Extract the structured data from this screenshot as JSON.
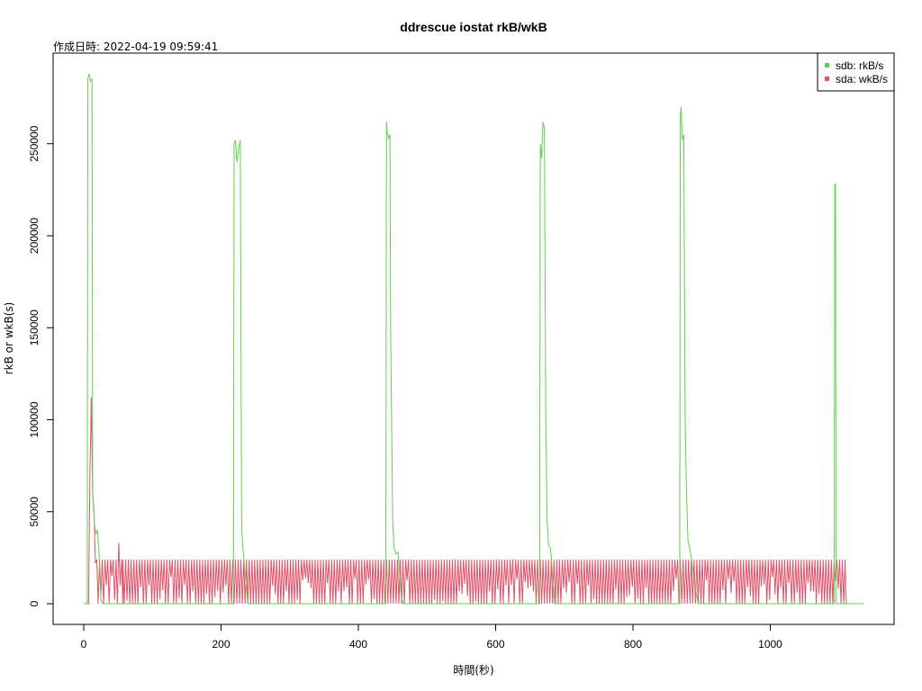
{
  "chart_data": {
    "type": "line",
    "title": "ddrescue iostat rkB/wkB",
    "subtitle": "作成日時: 2022-04-19 09:59:41",
    "xlabel": "時間(秒)",
    "ylabel": "rkB or wkB(s)",
    "xlim": [
      0,
      1135
    ],
    "ylim": [
      0,
      290000
    ],
    "x_ticks": [
      0,
      200,
      400,
      600,
      800,
      1000
    ],
    "y_ticks": [
      0,
      50000,
      100000,
      150000,
      200000,
      250000
    ],
    "grid": false,
    "legend_position": "top-right",
    "series": [
      {
        "name": "sdb: rkB/s",
        "color": "#61d04f",
        "points": [
          [
            0,
            0
          ],
          [
            5,
            0
          ],
          [
            6,
            285000
          ],
          [
            8,
            288000
          ],
          [
            10,
            284000
          ],
          [
            12,
            285000
          ],
          [
            13,
            60000
          ],
          [
            16,
            42000
          ],
          [
            18,
            38000
          ],
          [
            20,
            40000
          ],
          [
            22,
            30000
          ],
          [
            25,
            2000
          ],
          [
            28,
            0
          ],
          [
            218,
            0
          ],
          [
            219,
            250000
          ],
          [
            221,
            252000
          ],
          [
            223,
            240000
          ],
          [
            226,
            248000
          ],
          [
            228,
            252000
          ],
          [
            230,
            40000
          ],
          [
            233,
            25000
          ],
          [
            236,
            12000
          ],
          [
            239,
            0
          ],
          [
            440,
            0
          ],
          [
            441,
            262000
          ],
          [
            442,
            256000
          ],
          [
            444,
            253000
          ],
          [
            446,
            255000
          ],
          [
            447,
            150000
          ],
          [
            450,
            45000
          ],
          [
            452,
            30000
          ],
          [
            455,
            27000
          ],
          [
            458,
            28000
          ],
          [
            462,
            5000
          ],
          [
            465,
            0
          ],
          [
            664,
            0
          ],
          [
            665,
            250000
          ],
          [
            667,
            242000
          ],
          [
            669,
            262000
          ],
          [
            671,
            258000
          ],
          [
            673,
            100000
          ],
          [
            675,
            45000
          ],
          [
            677,
            32000
          ],
          [
            680,
            30000
          ],
          [
            683,
            15000
          ],
          [
            686,
            0
          ],
          [
            868,
            0
          ],
          [
            869,
            265000
          ],
          [
            870,
            270000
          ],
          [
            872,
            252000
          ],
          [
            874,
            255000
          ],
          [
            876,
            100000
          ],
          [
            878,
            60000
          ],
          [
            880,
            35000
          ],
          [
            885,
            25000
          ],
          [
            890,
            10000
          ],
          [
            895,
            0
          ],
          [
            1093,
            0
          ],
          [
            1094,
            228000
          ],
          [
            1095,
            228000
          ],
          [
            1096,
            0
          ],
          [
            1136,
            0
          ]
        ]
      },
      {
        "name": "sda: wkB/s",
        "color": "#df536b",
        "points": [
          [
            0,
            0
          ],
          [
            5,
            0
          ],
          [
            7,
            0
          ],
          [
            9,
            70000
          ],
          [
            11,
            112000
          ],
          [
            13,
            60000
          ],
          [
            15,
            50000
          ],
          [
            17,
            22000
          ],
          [
            19,
            24000
          ],
          [
            21,
            0
          ],
          [
            23,
            24000
          ],
          [
            25,
            5000
          ],
          [
            27,
            24000
          ],
          [
            29,
            0
          ],
          [
            31,
            24000
          ],
          [
            33,
            10000
          ],
          [
            35,
            24000
          ],
          [
            37,
            0
          ],
          [
            39,
            24000
          ],
          [
            41,
            15000
          ],
          [
            43,
            24000
          ],
          [
            45,
            2000
          ],
          [
            47,
            24000
          ],
          [
            49,
            0
          ],
          [
            51,
            33000
          ],
          [
            53,
            10000
          ],
          [
            55,
            24000
          ],
          [
            57,
            0
          ]
        ],
        "pattern_from": 57,
        "pattern_to": 1108,
        "pattern_period": 4,
        "pattern_high": 24000,
        "gaps": [
          [
            210,
            250
          ],
          [
            432,
            460
          ],
          [
            656,
            690
          ],
          [
            760,
            770
          ],
          [
            862,
            880
          ]
        ]
      }
    ]
  }
}
